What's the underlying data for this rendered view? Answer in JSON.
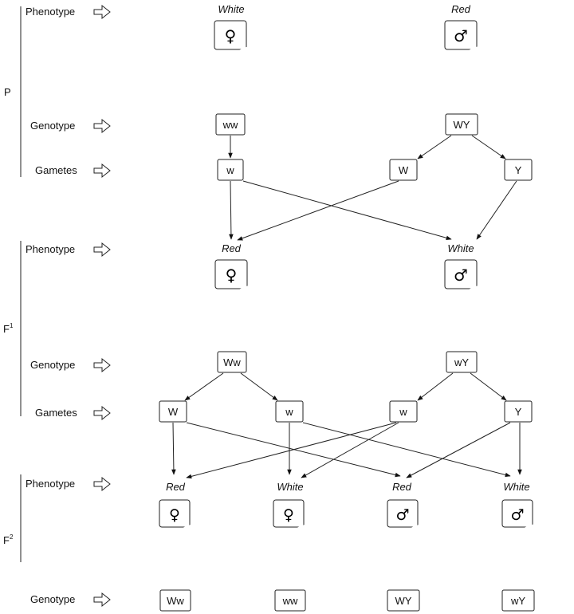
{
  "row_labels": {
    "phenotype": "Phenotype",
    "genotype": "Genotype",
    "gametes": "Gametes"
  },
  "generations": {
    "p": "P",
    "f1_base": "F",
    "f1_sup": "1",
    "f2_base": "F",
    "f2_sup": "2"
  },
  "p": {
    "female": {
      "phenotype": "White",
      "sex_symbol": "♀",
      "genotype": "ww",
      "gametes": [
        "w"
      ]
    },
    "male": {
      "phenotype": "Red",
      "sex_symbol": "♂",
      "genotype": "WY",
      "gametes": [
        "W",
        "Y"
      ]
    }
  },
  "f1": {
    "female": {
      "phenotype": "Red",
      "sex_symbol": "♀",
      "genotype": "Ww",
      "gametes": [
        "W",
        "w"
      ]
    },
    "male": {
      "phenotype": "White",
      "sex_symbol": "♂",
      "genotype": "wY",
      "gametes": [
        "w",
        "Y"
      ]
    }
  },
  "f2": [
    {
      "phenotype": "Red",
      "sex_symbol": "♀",
      "genotype": "Ww"
    },
    {
      "phenotype": "White",
      "sex_symbol": "♀",
      "genotype": "ww"
    },
    {
      "phenotype": "Red",
      "sex_symbol": "♂",
      "genotype": "WY"
    },
    {
      "phenotype": "White",
      "sex_symbol": "♂",
      "genotype": "wY"
    }
  ],
  "colors": {
    "ink": "#111111",
    "background": "#ffffff"
  }
}
